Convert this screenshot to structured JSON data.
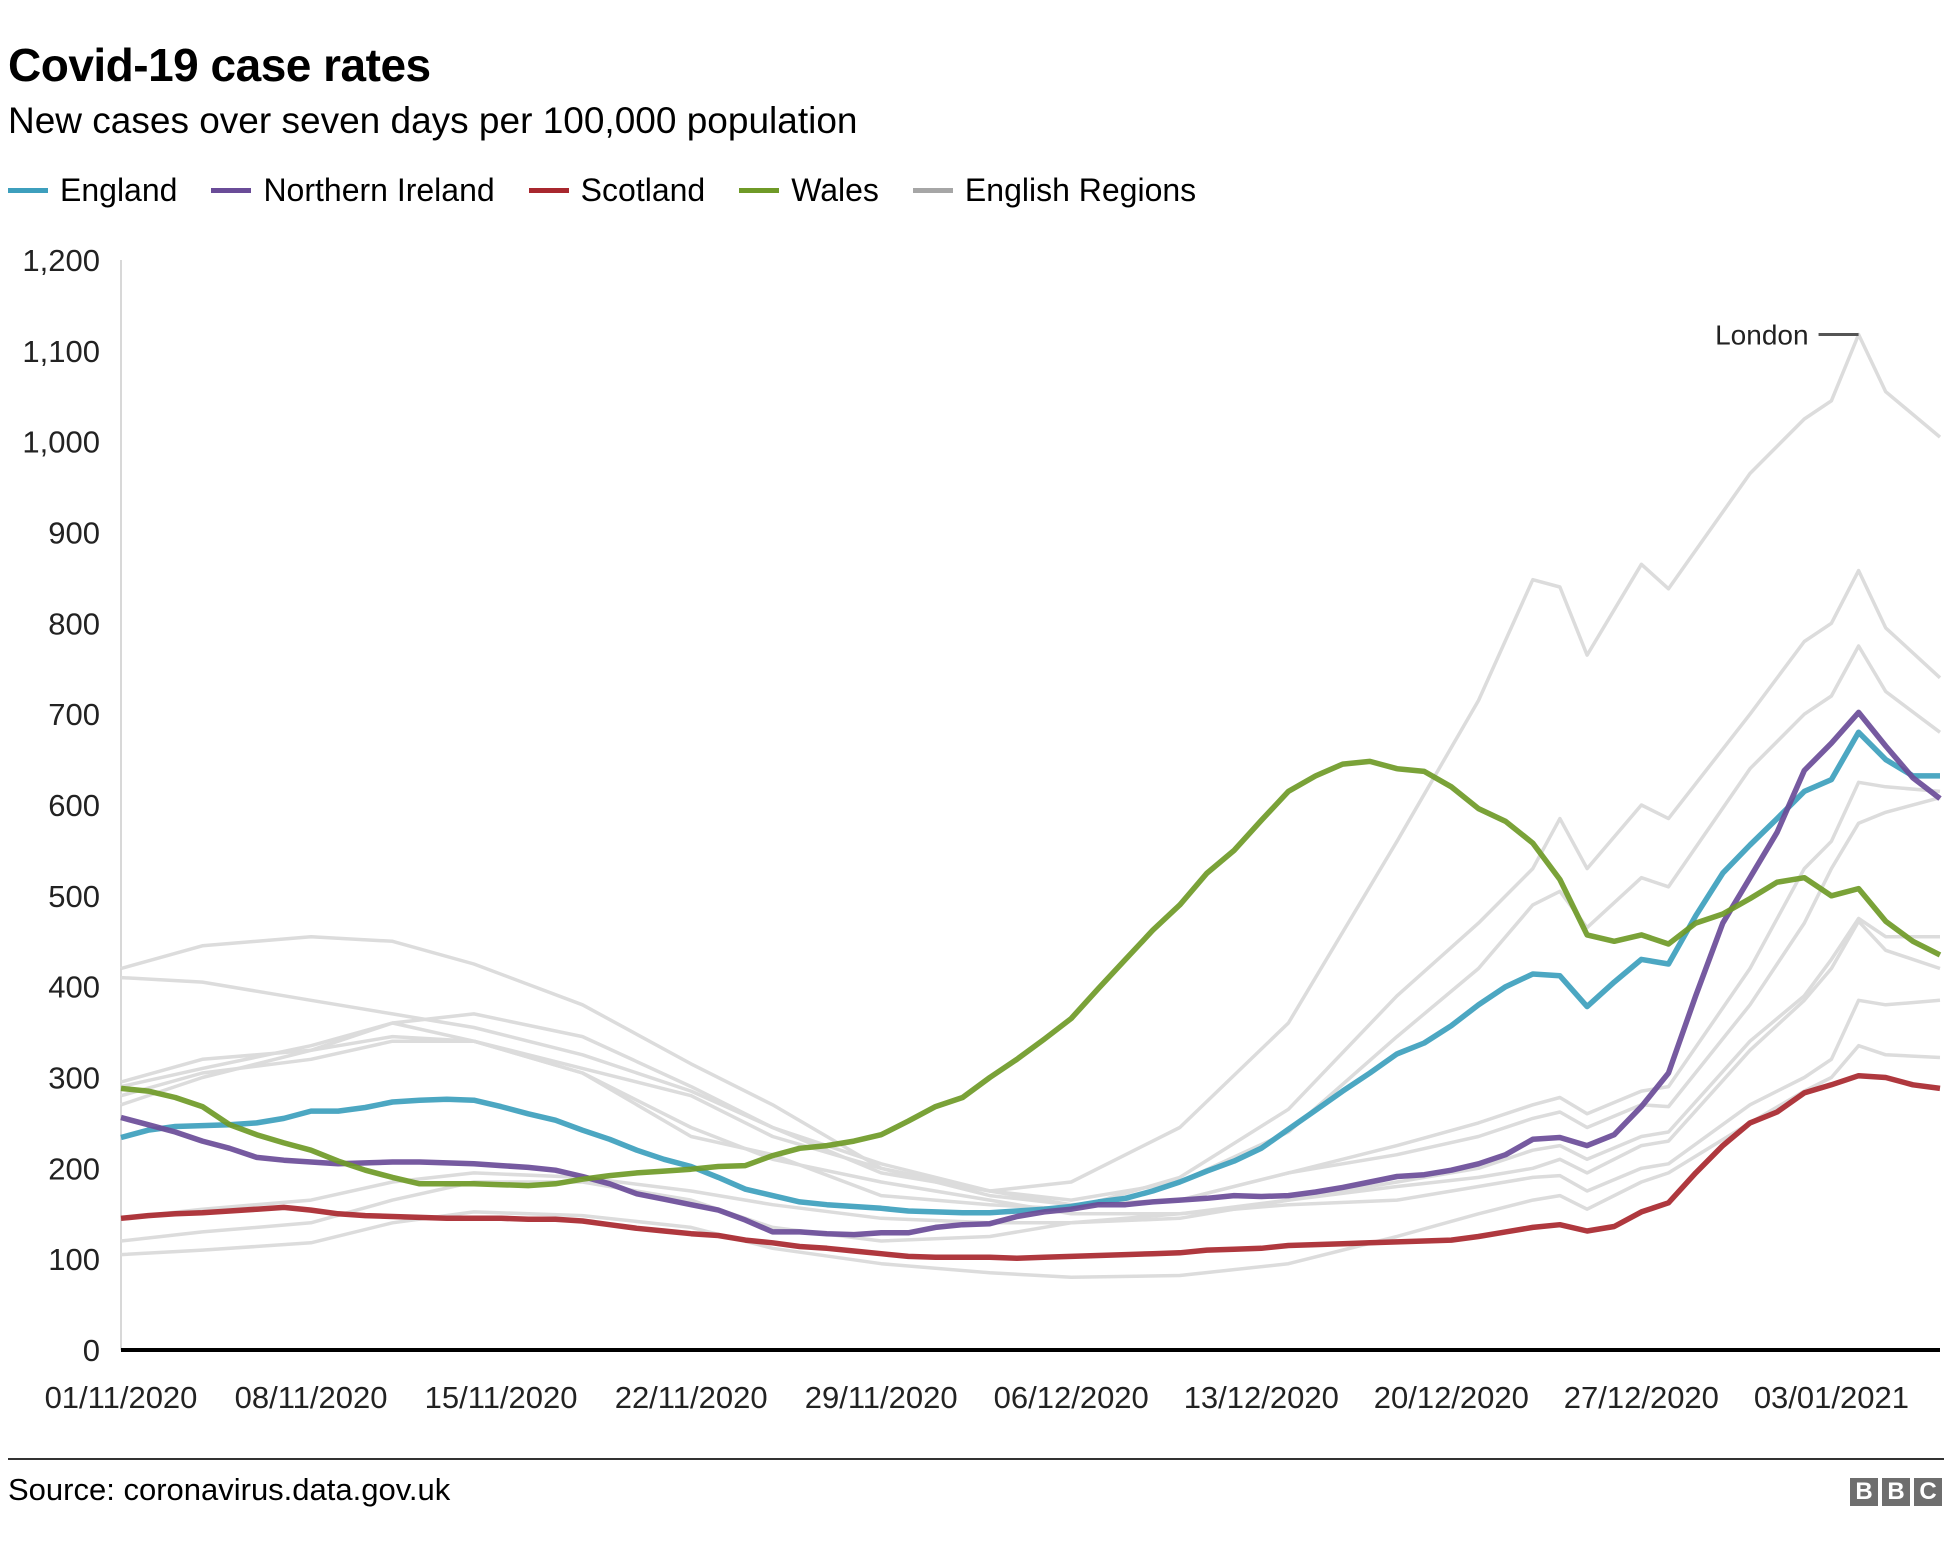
{
  "title": "Covid-19 case rates",
  "subtitle": "New cases over seven days per 100,000 population",
  "source": "Source: coronavirus.data.gov.uk",
  "logo": "BBC",
  "legend": [
    {
      "label": "England",
      "color": "#3d9fbd"
    },
    {
      "label": "Northern Ireland",
      "color": "#6a4c98"
    },
    {
      "label": "Scotland",
      "color": "#a8272e"
    },
    {
      "label": "Wales",
      "color": "#6f9a27"
    },
    {
      "label": "English Regions",
      "color": "#a6a6a6"
    }
  ],
  "chart_data": {
    "type": "line",
    "title": "Covid-19 case rates",
    "subtitle": "New cases over seven days per 100,000 population",
    "xlabel": "",
    "ylabel": "",
    "ylim": [
      0,
      1200
    ],
    "y_ticks": [
      "0",
      "100",
      "200",
      "300",
      "400",
      "500",
      "600",
      "700",
      "800",
      "900",
      "1,000",
      "1,100",
      "1,200"
    ],
    "x_ticks": [
      "01/11/2020",
      "08/11/2020",
      "15/11/2020",
      "22/11/2020",
      "29/11/2020",
      "06/12/2020",
      "13/12/2020",
      "20/12/2020",
      "27/12/2020",
      "03/01/2021"
    ],
    "grid": false,
    "legend_position": "top-left",
    "x": [
      "01/11/2020",
      "02/11/2020",
      "03/11/2020",
      "04/11/2020",
      "05/11/2020",
      "06/11/2020",
      "07/11/2020",
      "08/11/2020",
      "09/11/2020",
      "10/11/2020",
      "11/11/2020",
      "12/11/2020",
      "13/11/2020",
      "14/11/2020",
      "15/11/2020",
      "16/11/2020",
      "17/11/2020",
      "18/11/2020",
      "19/11/2020",
      "20/11/2020",
      "21/11/2020",
      "22/11/2020",
      "23/11/2020",
      "24/11/2020",
      "25/11/2020",
      "26/11/2020",
      "27/11/2020",
      "28/11/2020",
      "29/11/2020",
      "30/11/2020",
      "01/12/2020",
      "02/12/2020",
      "03/12/2020",
      "04/12/2020",
      "05/12/2020",
      "06/12/2020",
      "07/12/2020",
      "08/12/2020",
      "09/12/2020",
      "10/12/2020",
      "11/12/2020",
      "12/12/2020",
      "13/12/2020",
      "14/12/2020",
      "15/12/2020",
      "16/12/2020",
      "17/12/2020",
      "18/12/2020",
      "19/12/2020",
      "20/12/2020",
      "21/12/2020",
      "22/12/2020",
      "23/12/2020",
      "24/12/2020",
      "25/12/2020",
      "26/12/2020",
      "27/12/2020",
      "28/12/2020",
      "29/12/2020",
      "30/12/2020",
      "31/12/2020",
      "01/01/2021",
      "02/01/2021",
      "03/01/2021",
      "04/01/2021",
      "05/01/2021",
      "06/01/2021",
      "07/01/2021"
    ],
    "series": [
      {
        "name": "England",
        "color": "#3d9fbd",
        "values": [
          234,
          242,
          246,
          247,
          248,
          250,
          255,
          263,
          263,
          267,
          273,
          275,
          276,
          275,
          268,
          260,
          253,
          242,
          232,
          220,
          210,
          202,
          190,
          177,
          170,
          163,
          160,
          158,
          156,
          153,
          152,
          151,
          151,
          153,
          155,
          158,
          163,
          167,
          175,
          185,
          197,
          208,
          222,
          243,
          264,
          285,
          305,
          326,
          338,
          357,
          380,
          400,
          414,
          412,
          378,
          405,
          430,
          425,
          478,
          525,
          556,
          585,
          615,
          628,
          680,
          650,
          632,
          632
        ]
      },
      {
        "name": "Northern Ireland",
        "color": "#6a4c98",
        "values": [
          256,
          248,
          240,
          230,
          222,
          212,
          209,
          207,
          205,
          206,
          207,
          207,
          206,
          205,
          203,
          201,
          198,
          191,
          183,
          172,
          166,
          160,
          154,
          143,
          130,
          130,
          128,
          127,
          129,
          129,
          135,
          138,
          139,
          147,
          152,
          155,
          160,
          160,
          163,
          165,
          167,
          170,
          169,
          170,
          174,
          179,
          185,
          191,
          193,
          198,
          205,
          215,
          232,
          234,
          225,
          237,
          268,
          305,
          390,
          470,
          520,
          570,
          638,
          668,
          702,
          665,
          630,
          607
        ]
      },
      {
        "name": "Scotland",
        "color": "#a8272e",
        "values": [
          145,
          148,
          150,
          151,
          153,
          155,
          157,
          154,
          150,
          148,
          147,
          146,
          145,
          145,
          145,
          144,
          144,
          142,
          138,
          134,
          131,
          128,
          126,
          121,
          118,
          114,
          112,
          109,
          106,
          103,
          102,
          102,
          102,
          101,
          102,
          103,
          104,
          105,
          106,
          107,
          110,
          111,
          112,
          115,
          116,
          117,
          118,
          119,
          120,
          121,
          125,
          130,
          135,
          138,
          131,
          136,
          152,
          162,
          195,
          225,
          250,
          262,
          283,
          292,
          302,
          300,
          292,
          288
        ]
      },
      {
        "name": "Wales",
        "color": "#6f9a27",
        "values": [
          288,
          285,
          278,
          268,
          248,
          237,
          228,
          220,
          208,
          198,
          190,
          183,
          183,
          183,
          182,
          181,
          183,
          188,
          192,
          195,
          197,
          199,
          202,
          203,
          214,
          222,
          225,
          230,
          237,
          252,
          268,
          278,
          300,
          320,
          342,
          365,
          398,
          430,
          462,
          490,
          525,
          550,
          583,
          615,
          632,
          645,
          648,
          640,
          637,
          620,
          596,
          582,
          558,
          518,
          457,
          450,
          457,
          447,
          470,
          480,
          497,
          515,
          520,
          500,
          508,
          472,
          450,
          435
        ]
      }
    ],
    "regions_x": [
      "01/11/2020",
      "04/11/2020",
      "08/11/2020",
      "11/11/2020",
      "14/11/2020",
      "18/11/2020",
      "22/11/2020",
      "25/11/2020",
      "29/11/2020",
      "03/12/2020",
      "06/12/2020",
      "10/12/2020",
      "14/12/2020",
      "18/12/2020",
      "21/12/2020",
      "23/12/2020",
      "24/12/2020",
      "25/12/2020",
      "27/12/2020",
      "28/12/2020",
      "31/12/2020",
      "02/01/2021",
      "03/01/2021",
      "04/01/2021",
      "05/01/2021",
      "07/01/2021"
    ],
    "regions_color": "#dcdcdc",
    "regions": [
      {
        "label": "London",
        "values": [
          295,
          320,
          330,
          345,
          340,
          310,
          280,
          235,
          200,
          175,
          185,
          245,
          360,
          560,
          715,
          848,
          840,
          765,
          865,
          838,
          965,
          1025,
          1045,
          1118,
          1055,
          1005
        ]
      },
      {
        "values": [
          270,
          300,
          330,
          360,
          340,
          305,
          235,
          215,
          170,
          160,
          155,
          190,
          265,
          390,
          470,
          530,
          585,
          530,
          600,
          585,
          700,
          780,
          800,
          858,
          795,
          740
        ]
      },
      {
        "values": [
          290,
          310,
          335,
          360,
          370,
          345,
          290,
          245,
          195,
          175,
          165,
          185,
          240,
          345,
          420,
          490,
          505,
          465,
          520,
          510,
          640,
          700,
          720,
          775,
          725,
          680
        ]
      },
      {
        "values": [
          420,
          445,
          455,
          450,
          425,
          380,
          315,
          270,
          200,
          170,
          160,
          165,
          195,
          225,
          250,
          270,
          278,
          260,
          285,
          290,
          420,
          530,
          560,
          625,
          620,
          615
        ]
      },
      {
        "values": [
          410,
          405,
          385,
          370,
          355,
          325,
          285,
          245,
          205,
          175,
          160,
          165,
          195,
          215,
          235,
          255,
          262,
          245,
          270,
          268,
          380,
          470,
          530,
          580,
          592,
          608
        ]
      },
      {
        "values": [
          280,
          305,
          320,
          340,
          340,
          305,
          245,
          210,
          185,
          165,
          150,
          150,
          165,
          185,
          200,
          220,
          225,
          210,
          235,
          240,
          340,
          390,
          430,
          475,
          455,
          455
        ]
      },
      {
        "values": [
          145,
          155,
          165,
          185,
          195,
          190,
          175,
          160,
          145,
          140,
          140,
          145,
          165,
          180,
          190,
          200,
          210,
          195,
          225,
          230,
          330,
          385,
          420,
          472,
          440,
          420
        ]
      },
      {
        "values": [
          120,
          130,
          140,
          165,
          185,
          185,
          165,
          135,
          120,
          125,
          140,
          150,
          160,
          165,
          180,
          190,
          192,
          175,
          200,
          205,
          270,
          300,
          320,
          385,
          380,
          385
        ]
      },
      {
        "values": [
          105,
          110,
          118,
          140,
          152,
          148,
          135,
          112,
          95,
          85,
          80,
          82,
          95,
          125,
          150,
          165,
          170,
          155,
          185,
          195,
          250,
          285,
          300,
          335,
          325,
          322
        ]
      }
    ],
    "annotations": [
      {
        "text": "London"
      }
    ]
  }
}
